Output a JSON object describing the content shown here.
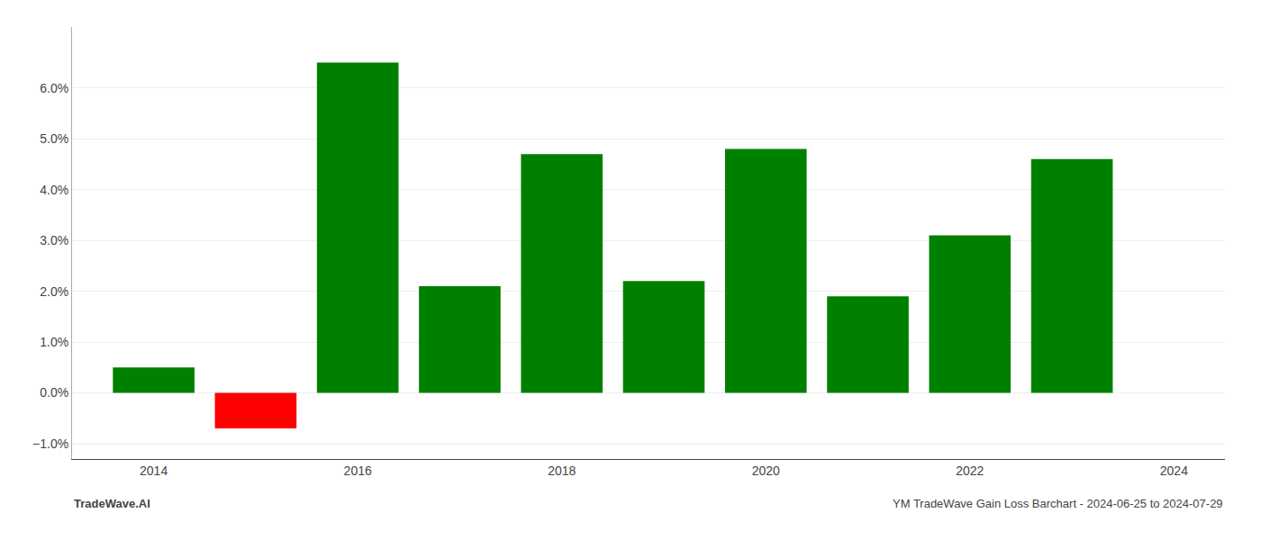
{
  "chart_data": {
    "type": "bar",
    "title": "YM TradeWave Gain Loss Barchart - 2024-06-25 to 2024-07-29",
    "annotations": [
      "TradeWave.AI"
    ],
    "x": [
      2014,
      2015,
      2016,
      2017,
      2018,
      2019,
      2020,
      2021,
      2022,
      2023
    ],
    "values": [
      0.005,
      -0.007,
      0.065,
      0.021,
      0.047,
      0.022,
      0.048,
      0.019,
      0.031,
      0.046
    ],
    "colors": [
      "#008000",
      "#ff0000",
      "#008000",
      "#008000",
      "#008000",
      "#008000",
      "#008000",
      "#008000",
      "#008000",
      "#008000"
    ],
    "xlim": [
      2013.2,
      2024.5
    ],
    "xticks": [
      2014,
      2016,
      2018,
      2020,
      2022,
      2024
    ],
    "ylim": [
      -0.013,
      0.072
    ],
    "yticks": [
      {
        "value": -0.01,
        "label": "−1.0%"
      },
      {
        "value": 0.0,
        "label": "0.0%"
      },
      {
        "value": 0.01,
        "label": "1.0%"
      },
      {
        "value": 0.02,
        "label": "2.0%"
      },
      {
        "value": 0.03,
        "label": "3.0%"
      },
      {
        "value": 0.04,
        "label": "4.0%"
      },
      {
        "value": 0.05,
        "label": "5.0%"
      },
      {
        "value": 0.06,
        "label": "6.0%"
      }
    ],
    "grid": true
  }
}
